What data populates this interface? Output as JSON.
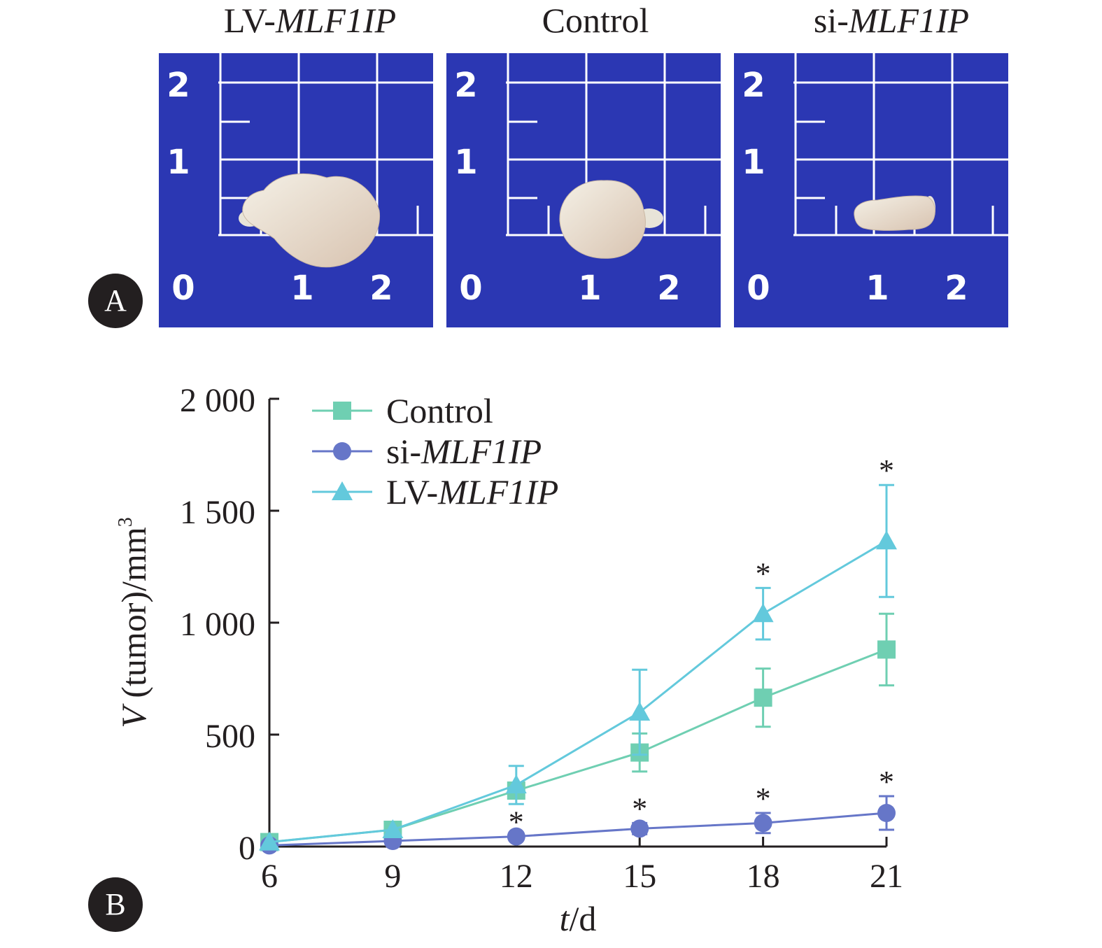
{
  "panels": {
    "a_label": "A",
    "b_label": "B"
  },
  "photos": [
    {
      "prefix": "LV-",
      "gene": "MLF1IP",
      "size": "large"
    },
    {
      "prefix": "",
      "gene": "Control",
      "size": "medium"
    },
    {
      "prefix": "si-",
      "gene": "MLF1IP",
      "size": "small"
    }
  ],
  "ruler": {
    "y_ticks": [
      "2",
      "1"
    ],
    "x_ticks": [
      "0",
      "1",
      "2"
    ]
  },
  "colors": {
    "control": "#6fcfb2",
    "si": "#6676c8",
    "lv": "#63c9dc",
    "ruler_bg": "#2b37b3",
    "ink": "#231f20"
  },
  "chart_data": {
    "type": "line",
    "xlabel_italic": "t",
    "xlabel_unit": "/d",
    "ylabel_italic": "V",
    "ylabel_rest": " (tumor)/mm",
    "ylabel_sup": "3",
    "x": [
      6,
      9,
      12,
      15,
      18,
      21
    ],
    "x_tick_labels": [
      "6",
      "9",
      "12",
      "15",
      "18",
      "21"
    ],
    "ylim": [
      0,
      2000
    ],
    "y_ticks": [
      0,
      500,
      1000,
      1500,
      2000
    ],
    "y_tick_labels": [
      "0",
      "500",
      "1 000",
      "1 500",
      "2 000"
    ],
    "legend_position": "top-left",
    "series": [
      {
        "name_prefix": "",
        "name_italic": "",
        "name": "Control",
        "marker": "square",
        "color": "#6fcfb2",
        "values": [
          20,
          75,
          250,
          420,
          665,
          880
        ],
        "errors": [
          0,
          0,
          0,
          85,
          130,
          160
        ]
      },
      {
        "name_prefix": "si-",
        "name_italic": "MLF1IP",
        "name": "si-MLF1IP",
        "marker": "circle",
        "color": "#6676c8",
        "values": [
          5,
          25,
          45,
          80,
          105,
          150
        ],
        "errors": [
          0,
          0,
          0,
          25,
          45,
          75
        ]
      },
      {
        "name_prefix": "LV-",
        "name_italic": "MLF1IP",
        "name": "LV-MLF1IP",
        "marker": "triangle",
        "color": "#63c9dc",
        "values": [
          20,
          75,
          275,
          600,
          1040,
          1365
        ],
        "errors": [
          0,
          0,
          85,
          190,
          115,
          250
        ]
      }
    ],
    "significance": [
      {
        "series": "si-MLF1IP",
        "x": 12,
        "label": "*"
      },
      {
        "series": "si-MLF1IP",
        "x": 15,
        "label": "*"
      },
      {
        "series": "si-MLF1IP",
        "x": 18,
        "label": "*"
      },
      {
        "series": "si-MLF1IP",
        "x": 21,
        "label": "*"
      },
      {
        "series": "LV-MLF1IP",
        "x": 18,
        "label": "*"
      },
      {
        "series": "LV-MLF1IP",
        "x": 21,
        "label": "*"
      }
    ]
  }
}
